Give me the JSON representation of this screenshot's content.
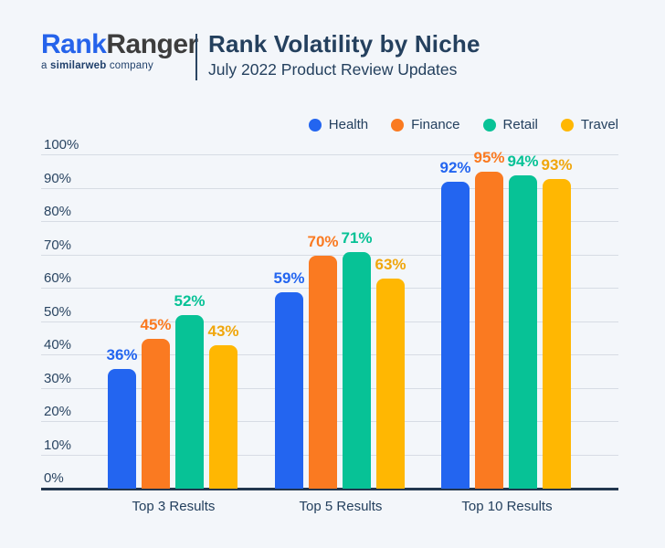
{
  "header": {
    "logo": {
      "part1": "Rank",
      "part2": "Ranger",
      "tagline_prefix": "a ",
      "tagline_brand": "similarweb",
      "tagline_suffix": " company"
    },
    "title": "Rank Volatility by Niche",
    "subtitle": "July 2022 Product Review Updates"
  },
  "colors": {
    "background": "#f3f6fa",
    "navy_text": "#24405e",
    "logo_blue": "#2563eb",
    "logo_dark": "#3d3d3d",
    "gridline": "#d7dce4",
    "baseline": "#22364e"
  },
  "chart_data": {
    "type": "bar",
    "title": "Rank Volatility by Niche",
    "subtitle": "July 2022 Product Review Updates",
    "categories": [
      "Top 3 Results",
      "Top 5 Results",
      "Top 10 Results"
    ],
    "series": [
      {
        "name": "Health",
        "color": "#2365f0",
        "label_color": "#2365f0",
        "values": [
          36,
          59,
          92
        ]
      },
      {
        "name": "Finance",
        "color": "#fa7a21",
        "label_color": "#fa7a21",
        "values": [
          45,
          70,
          95
        ]
      },
      {
        "name": "Retail",
        "color": "#07c296",
        "label_color": "#07c296",
        "values": [
          52,
          71,
          94
        ]
      },
      {
        "name": "Travel",
        "color": "#ffb702",
        "label_color": "#f0a60c",
        "values": [
          43,
          63,
          93
        ]
      }
    ],
    "y_axis": {
      "min": 0,
      "max": 100,
      "step": 10,
      "tick_suffix": "%"
    },
    "value_label_suffix": "%",
    "legend_position": "top-right",
    "grid": true,
    "ylim": [
      0,
      100
    ]
  }
}
